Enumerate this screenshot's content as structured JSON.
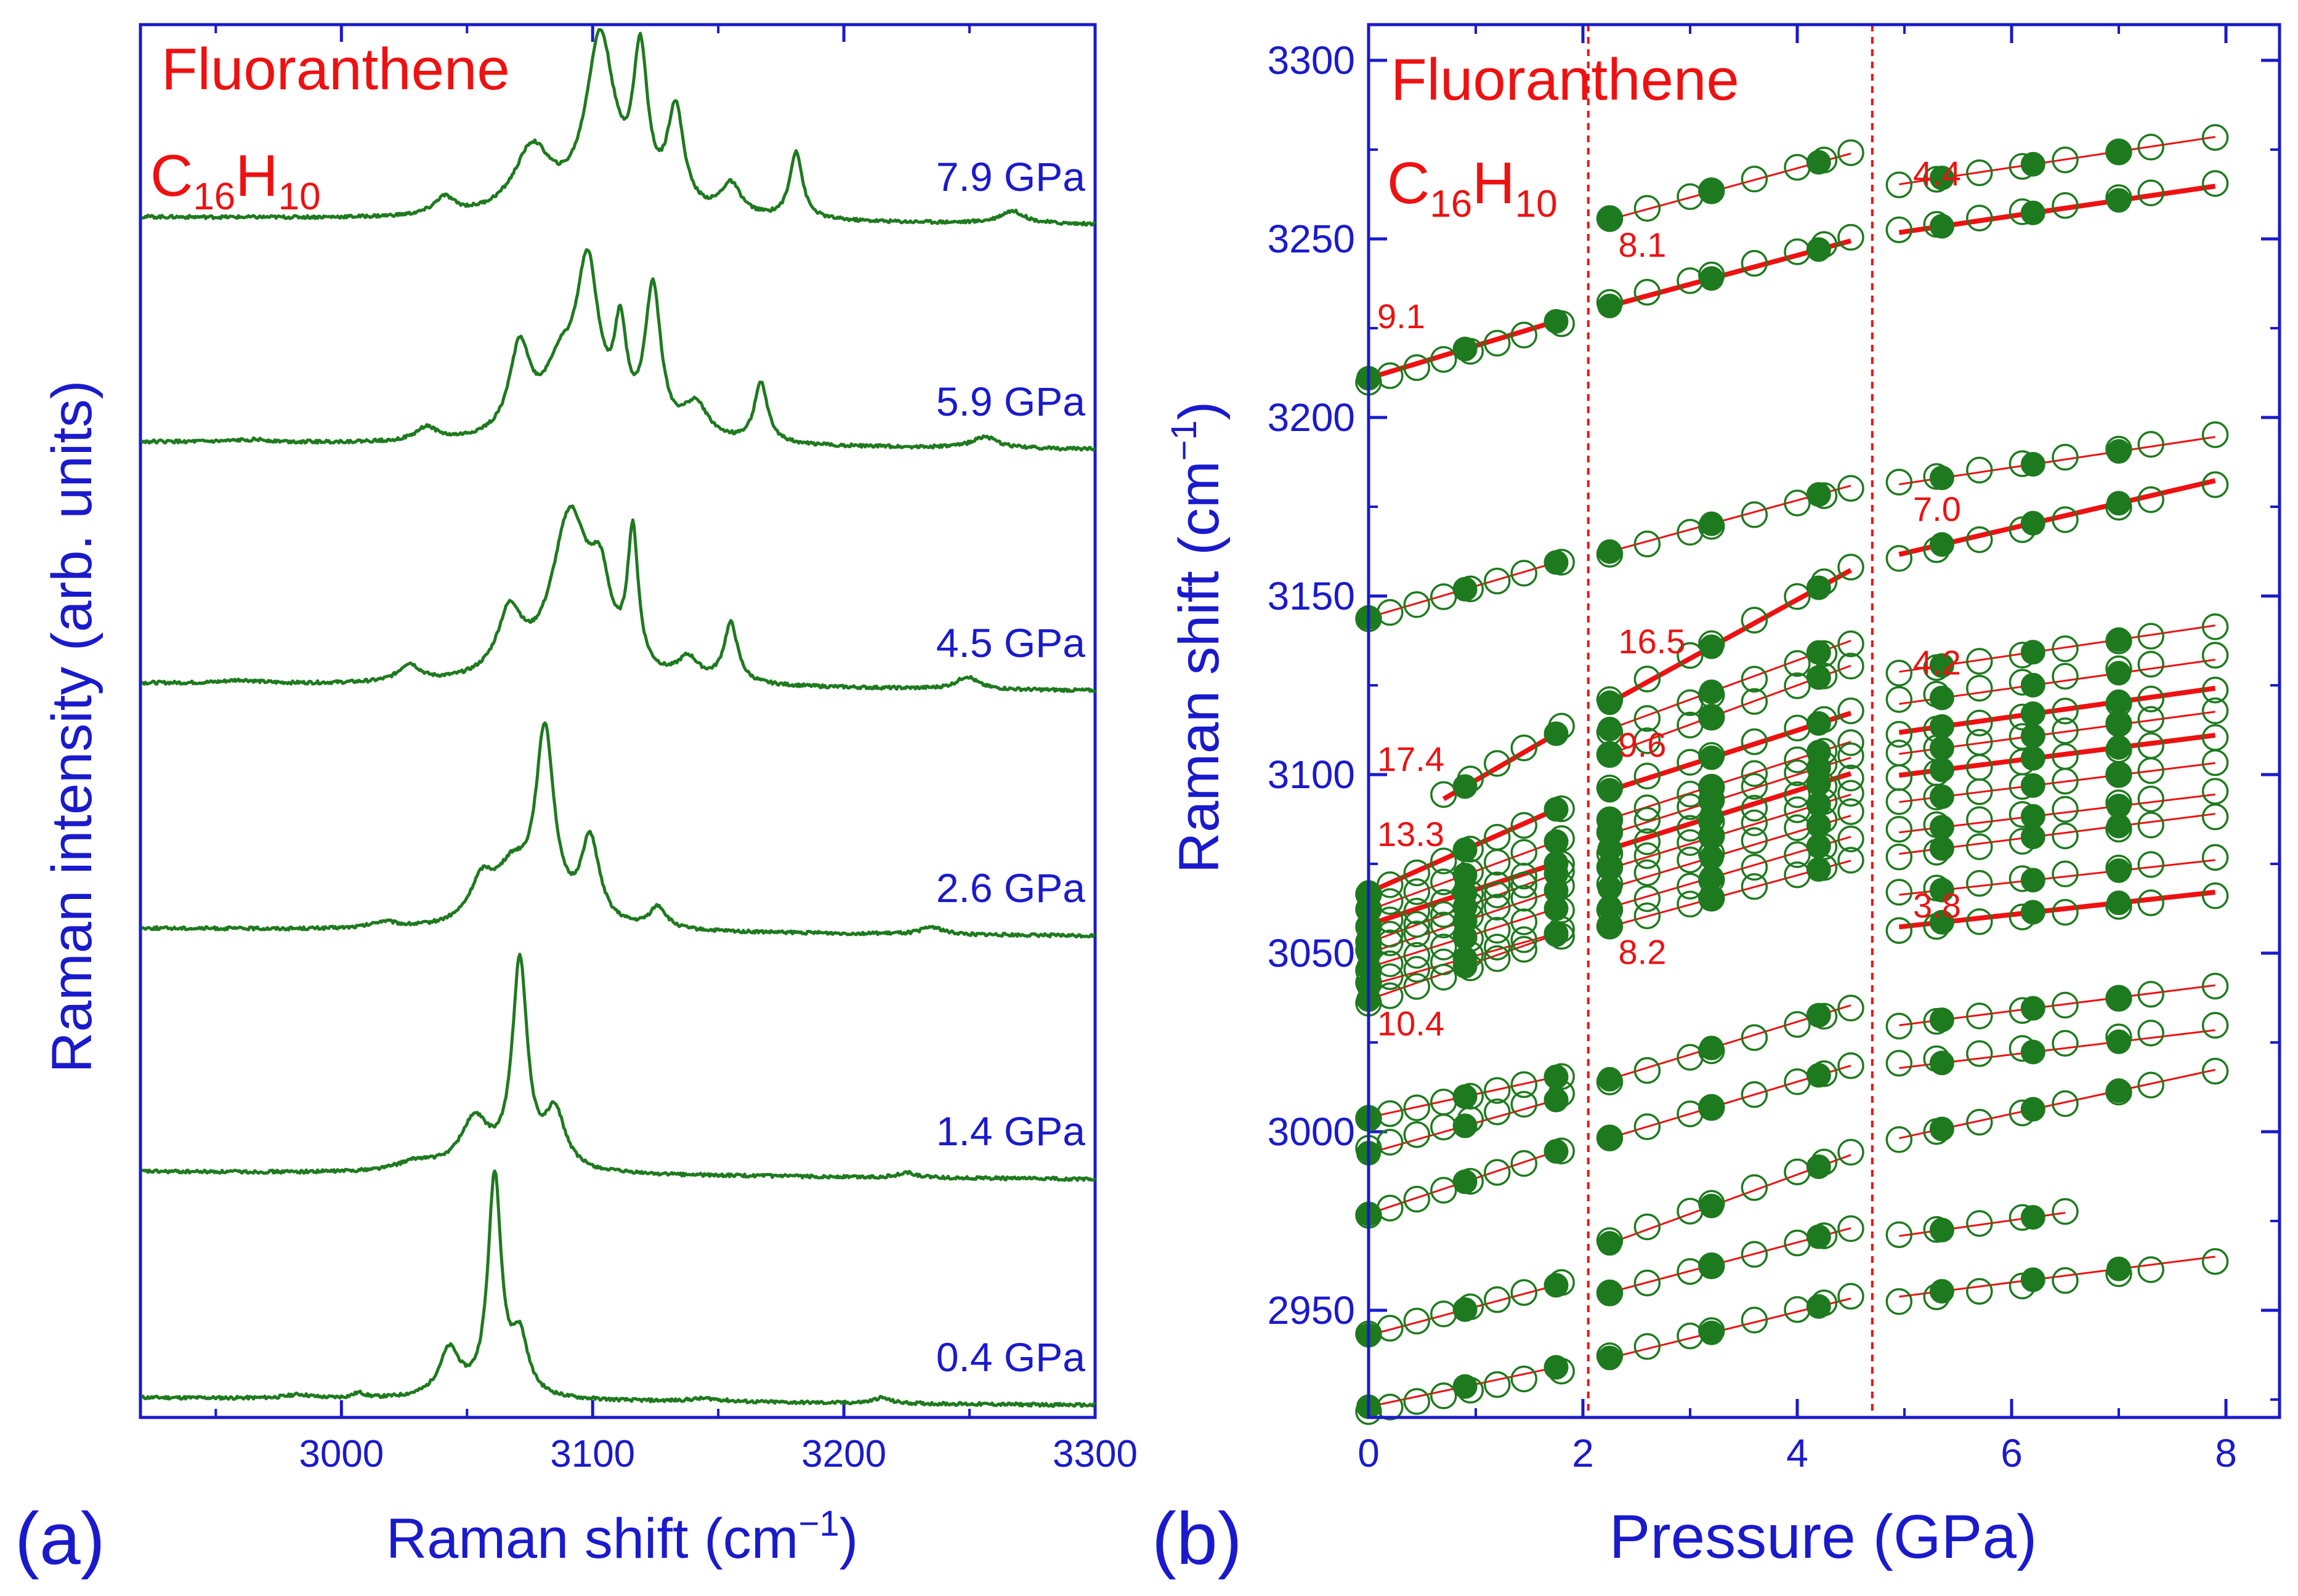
{
  "figure": {
    "panel_a_label": "(a)",
    "panel_b_label": "(b)",
    "colors": {
      "axis": "#1a1acc",
      "spectrum": "#1e7a1e",
      "fit": "#ee1111",
      "marker": "#1e7a1e"
    }
  },
  "chart_data": [
    {
      "type": "line",
      "panel": "a",
      "title_line1": "Fluoranthene",
      "title_formula": {
        "C": "C",
        "c_sub": "16",
        "H": "H",
        "h_sub": "10"
      },
      "xlabel": "Raman shift (cm",
      "xlabel_exp": "−1",
      "xlabel_close": ")",
      "ylabel": "Raman intensity (arb. units)",
      "xlim": [
        2920,
        3300
      ],
      "xticks": [
        3000,
        3100,
        3200,
        3300
      ],
      "grid": false,
      "series": [
        {
          "name": "0.4 GPa",
          "label": "0.4 GPa",
          "baseline": 0.4,
          "peaks": [
            [
              3043,
              0.75,
              5
            ],
            [
              3061,
              3.5,
              3.2
            ],
            [
              3071,
              0.9,
              4
            ],
            [
              2983,
              0.06,
              6
            ],
            [
              3007,
              0.08,
              3
            ],
            [
              3145,
              0.05,
              8
            ],
            [
              3215,
              0.09,
              4
            ]
          ]
        },
        {
          "name": "1.4 GPa",
          "label": "1.4 GPa",
          "baseline": 1.7,
          "peaks": [
            [
              3053,
              0.8,
              7
            ],
            [
              3071,
              3.3,
              3.6
            ],
            [
              3085,
              0.9,
              5
            ],
            [
              3030,
              0.15,
              10
            ],
            [
              3225,
              0.08,
              4
            ]
          ]
        },
        {
          "name": "2.6 GPa",
          "label": "2.6 GPa",
          "baseline": 3.0,
          "peaks": [
            [
              3056,
              0.65,
              6
            ],
            [
              3068,
              0.8,
              8
            ],
            [
              3081,
              3.0,
              4.5
            ],
            [
              3099,
              1.35,
              4.5
            ],
            [
              3126,
              0.35,
              4
            ],
            [
              3017,
              0.1,
              6
            ],
            [
              3235,
              0.12,
              5
            ]
          ]
        },
        {
          "name": "4.5 GPa",
          "label": "4.5 GPa",
          "baseline": 4.3,
          "peaks": [
            [
              3027,
              0.28,
              5
            ],
            [
              3067,
              1.0,
              6
            ],
            [
              3091,
              2.6,
              9
            ],
            [
              3103,
              1.2,
              5
            ],
            [
              3116,
              2.15,
              2.6
            ],
            [
              3138,
              0.35,
              5
            ],
            [
              3155,
              0.95,
              3.3
            ],
            [
              3249,
              0.2,
              5
            ],
            [
              2960,
              0.05,
              8
            ]
          ]
        },
        {
          "name": "5.9 GPa",
          "label": "5.9 GPa",
          "baseline": 5.6,
          "peaks": [
            [
              3034,
              0.22,
              5
            ],
            [
              3071,
              1.4,
              5
            ],
            [
              3087,
              1.0,
              8
            ],
            [
              3098,
              2.6,
              5.5
            ],
            [
              3111,
              1.5,
              3
            ],
            [
              3124,
              2.35,
              3.8
            ],
            [
              3141,
              0.55,
              6
            ],
            [
              3167,
              0.95,
              3.2
            ],
            [
              3256,
              0.18,
              6
            ],
            [
              2965,
              0.04,
              8
            ]
          ]
        },
        {
          "name": "7.9 GPa",
          "label": "7.9 GPa",
          "baseline": 6.9,
          "peaks": [
            [
              3041,
              0.28,
              5
            ],
            [
              3076,
              1.05,
              9
            ],
            [
              3103,
              2.8,
              7
            ],
            [
              3119,
              2.35,
              3.5
            ],
            [
              3133,
              1.6,
              4
            ],
            [
              3155,
              0.5,
              5
            ],
            [
              3181,
              1.08,
              3
            ],
            [
              3267,
              0.2,
              6
            ]
          ]
        }
      ]
    },
    {
      "type": "scatter",
      "panel": "b",
      "title_line1": "Fluoranthene",
      "title_formula": {
        "C": "C",
        "c_sub": "16",
        "H": "H",
        "h_sub": "10"
      },
      "xlabel": "Pressure (GPa)",
      "ylabel": "Raman shift (cm",
      "ylabel_exp": "−1",
      "ylabel_close": ")",
      "xlim": [
        0,
        8.5
      ],
      "ylim": [
        2920,
        3310
      ],
      "xticks": [
        0,
        2,
        4,
        6,
        8
      ],
      "xtick_labels": [
        "0",
        "2",
        "4",
        "6",
        "8"
      ],
      "yticks": [
        2950,
        3000,
        3050,
        3100,
        3150,
        3200,
        3250,
        3300
      ],
      "ytick_labels": [
        "2950",
        "3000",
        "3050",
        "3100",
        "3150",
        "3200",
        "3250",
        "3300"
      ],
      "phase_boundaries_gpa": [
        2.05,
        4.7
      ],
      "filled_pressures": [
        [
          0.0,
          0.9,
          1.75
        ],
        [
          2.25,
          3.2,
          4.2
        ],
        [
          5.35,
          6.2,
          7.0
        ]
      ],
      "open_pressures": [
        [
          0.0,
          0.2,
          0.45,
          0.7,
          0.95,
          1.2,
          1.45,
          1.8
        ],
        [
          2.25,
          2.6,
          3.0,
          3.2,
          3.6,
          4.0,
          4.25,
          4.5
        ],
        [
          4.95,
          5.3,
          5.7,
          6.1,
          6.5,
          7.0,
          7.3,
          7.9
        ]
      ],
      "series": [
        {
          "range": [
            0,
            1.8
          ],
          "y0": 2923,
          "slope": 6.3,
          "bold": false
        },
        {
          "range": [
            0,
            1.8
          ],
          "y0": 2943,
          "slope": 8.0,
          "bold": false
        },
        {
          "range": [
            0,
            1.8
          ],
          "y0": 2977,
          "slope": 10.0,
          "bold": false
        },
        {
          "range": [
            0,
            1.8
          ],
          "y0": 2994,
          "slope": 8.5,
          "bold": false
        },
        {
          "range": [
            0,
            1.8
          ],
          "y0": 3004,
          "slope": 6.5,
          "bold": false
        },
        {
          "range": [
            0,
            1.8
          ],
          "y0": 3037,
          "slope": 10.4,
          "bold": false
        },
        {
          "range": [
            0,
            1.8
          ],
          "y0": 3041,
          "slope": 8.3,
          "bold": false
        },
        {
          "range": [
            0,
            1.8
          ],
          "y0": 3046,
          "slope": 9.4,
          "bold": false
        },
        {
          "range": [
            0,
            1.8
          ],
          "y0": 3050,
          "slope": 10.0,
          "bold": false
        },
        {
          "range": [
            0,
            1.8
          ],
          "y0": 3053,
          "slope": 11.0,
          "bold": false
        },
        {
          "range": [
            0,
            1.8
          ],
          "y0": 3058,
          "slope": 9.8,
          "bold": true
        },
        {
          "range": [
            0,
            1.8
          ],
          "y0": 3062,
          "slope": 11.0,
          "bold": false
        },
        {
          "range": [
            0,
            1.8
          ],
          "y0": 3067,
          "slope": 13.3,
          "bold": true
        },
        {
          "range": [
            0.7,
            1.8
          ],
          "y0": 3081,
          "slope": 17.4,
          "bold": true
        },
        {
          "range": [
            0,
            1.8
          ],
          "y0": 3144,
          "slope": 8.8,
          "bold": false
        },
        {
          "range": [
            0,
            1.8
          ],
          "y0": 3211,
          "slope": 9.1,
          "bold": true
        },
        {
          "range": [
            2.25,
            4.5
          ],
          "y0": 2920,
          "slope": 7.4,
          "bold": false
        },
        {
          "range": [
            2.25,
            4.5
          ],
          "y0": 2937,
          "slope": 8.0,
          "bold": false
        },
        {
          "range": [
            2.25,
            4.5
          ],
          "y0": 2944,
          "slope": 11.0,
          "bold": false
        },
        {
          "range": [
            2.25,
            4.5
          ],
          "y0": 2978,
          "slope": 9.0,
          "bold": false
        },
        {
          "range": [
            2.25,
            4.5
          ],
          "y0": 2994,
          "slope": 9.2,
          "bold": false
        },
        {
          "range": [
            2.25,
            4.5
          ],
          "y0": 3039,
          "slope": 8.2,
          "bold": false
        },
        {
          "range": [
            2.25,
            4.5
          ],
          "y0": 3043,
          "slope": 8.8,
          "bold": false
        },
        {
          "range": [
            2.25,
            4.5
          ],
          "y0": 3048,
          "slope": 9.0,
          "bold": false
        },
        {
          "range": [
            2.25,
            4.5
          ],
          "y0": 3053,
          "slope": 9.2,
          "bold": false
        },
        {
          "range": [
            2.25,
            4.5
          ],
          "y0": 3058,
          "slope": 9.4,
          "bold": true
        },
        {
          "range": [
            2.25,
            4.5
          ],
          "y0": 3062,
          "slope": 9.5,
          "bold": false
        },
        {
          "range": [
            2.25,
            4.5
          ],
          "y0": 3066,
          "slope": 9.6,
          "bold": false
        },
        {
          "range": [
            2.25,
            4.5
          ],
          "y0": 3074,
          "slope": 9.6,
          "bold": true
        },
        {
          "range": [
            2.25,
            4.5
          ],
          "y0": 3081,
          "slope": 11.0,
          "bold": false
        },
        {
          "range": [
            2.25,
            4.5
          ],
          "y0": 3088,
          "slope": 11.0,
          "bold": false
        },
        {
          "range": [
            2.25,
            4.5
          ],
          "y0": 3083,
          "slope": 16.5,
          "bold": true
        },
        {
          "range": [
            2.25,
            4.5
          ],
          "y0": 3144,
          "slope": 8.2,
          "bold": false
        },
        {
          "range": [
            2.25,
            4.5
          ],
          "y0": 3213,
          "slope": 8.1,
          "bold": true
        },
        {
          "range": [
            2.25,
            4.5
          ],
          "y0": 3237,
          "slope": 8.2,
          "bold": false
        },
        {
          "range": [
            4.95,
            7.9
          ],
          "y0": 2935,
          "slope": 3.8,
          "bold": false
        },
        {
          "range": [
            4.95,
            6.5
          ],
          "y0": 2950,
          "slope": 4.2,
          "bold": false
        },
        {
          "range": [
            4.95,
            7.9
          ],
          "y0": 2966,
          "slope": 6.5,
          "bold": false
        },
        {
          "range": [
            4.95,
            7.9
          ],
          "y0": 3000,
          "slope": 3.6,
          "bold": false
        },
        {
          "range": [
            4.95,
            7.9
          ],
          "y0": 3011,
          "slope": 3.8,
          "bold": false
        },
        {
          "range": [
            4.95,
            7.9
          ],
          "y0": 3041,
          "slope": 3.3,
          "bold": true
        },
        {
          "range": [
            4.95,
            7.9
          ],
          "y0": 3050,
          "slope": 3.3,
          "bold": false
        },
        {
          "range": [
            4.95,
            7.9
          ],
          "y0": 3059,
          "slope": 3.8,
          "bold": false
        },
        {
          "range": [
            4.95,
            7.9
          ],
          "y0": 3066,
          "slope": 3.6,
          "bold": false
        },
        {
          "range": [
            4.95,
            7.9
          ],
          "y0": 3074,
          "slope": 3.7,
          "bold": false
        },
        {
          "range": [
            4.95,
            7.9
          ],
          "y0": 3081,
          "slope": 3.8,
          "bold": true
        },
        {
          "range": [
            4.95,
            7.9
          ],
          "y0": 3086,
          "slope": 4.0,
          "bold": false
        },
        {
          "range": [
            4.95,
            7.9
          ],
          "y0": 3091,
          "slope": 4.2,
          "bold": true
        },
        {
          "range": [
            4.95,
            7.9
          ],
          "y0": 3099,
          "slope": 4.2,
          "bold": false
        },
        {
          "range": [
            4.95,
            7.9
          ],
          "y0": 3107,
          "slope": 4.4,
          "bold": false
        },
        {
          "range": [
            4.95,
            7.9
          ],
          "y0": 3127,
          "slope": 7.0,
          "bold": true
        },
        {
          "range": [
            4.95,
            7.9
          ],
          "y0": 3159,
          "slope": 4.5,
          "bold": false
        },
        {
          "range": [
            4.95,
            7.9
          ],
          "y0": 3243,
          "slope": 4.5,
          "bold": false
        },
        {
          "range": [
            4.95,
            7.9
          ],
          "y0": 3230,
          "slope": 4.4,
          "bold": true
        }
      ],
      "slope_annotations": [
        {
          "text": "9.1",
          "x": 0.0,
          "y": 3225
        },
        {
          "text": "17.4",
          "x": 0.0,
          "y": 3101
        },
        {
          "text": "13.3",
          "x": 0.0,
          "y": 3080
        },
        {
          "text": "10.4",
          "x": 0.0,
          "y": 3027
        },
        {
          "text": "8.1",
          "x": 2.25,
          "y": 3245
        },
        {
          "text": "16.5",
          "x": 2.25,
          "y": 3134
        },
        {
          "text": "9.6",
          "x": 2.25,
          "y": 3105
        },
        {
          "text": "8.2",
          "x": 2.25,
          "y": 3047
        },
        {
          "text": "4.4",
          "x": 5.0,
          "y": 3265
        },
        {
          "text": "7.0",
          "x": 5.0,
          "y": 3171
        },
        {
          "text": "4.2",
          "x": 5.0,
          "y": 3128
        },
        {
          "text": "3.8",
          "x": 5.0,
          "y": 3060
        }
      ]
    }
  ]
}
